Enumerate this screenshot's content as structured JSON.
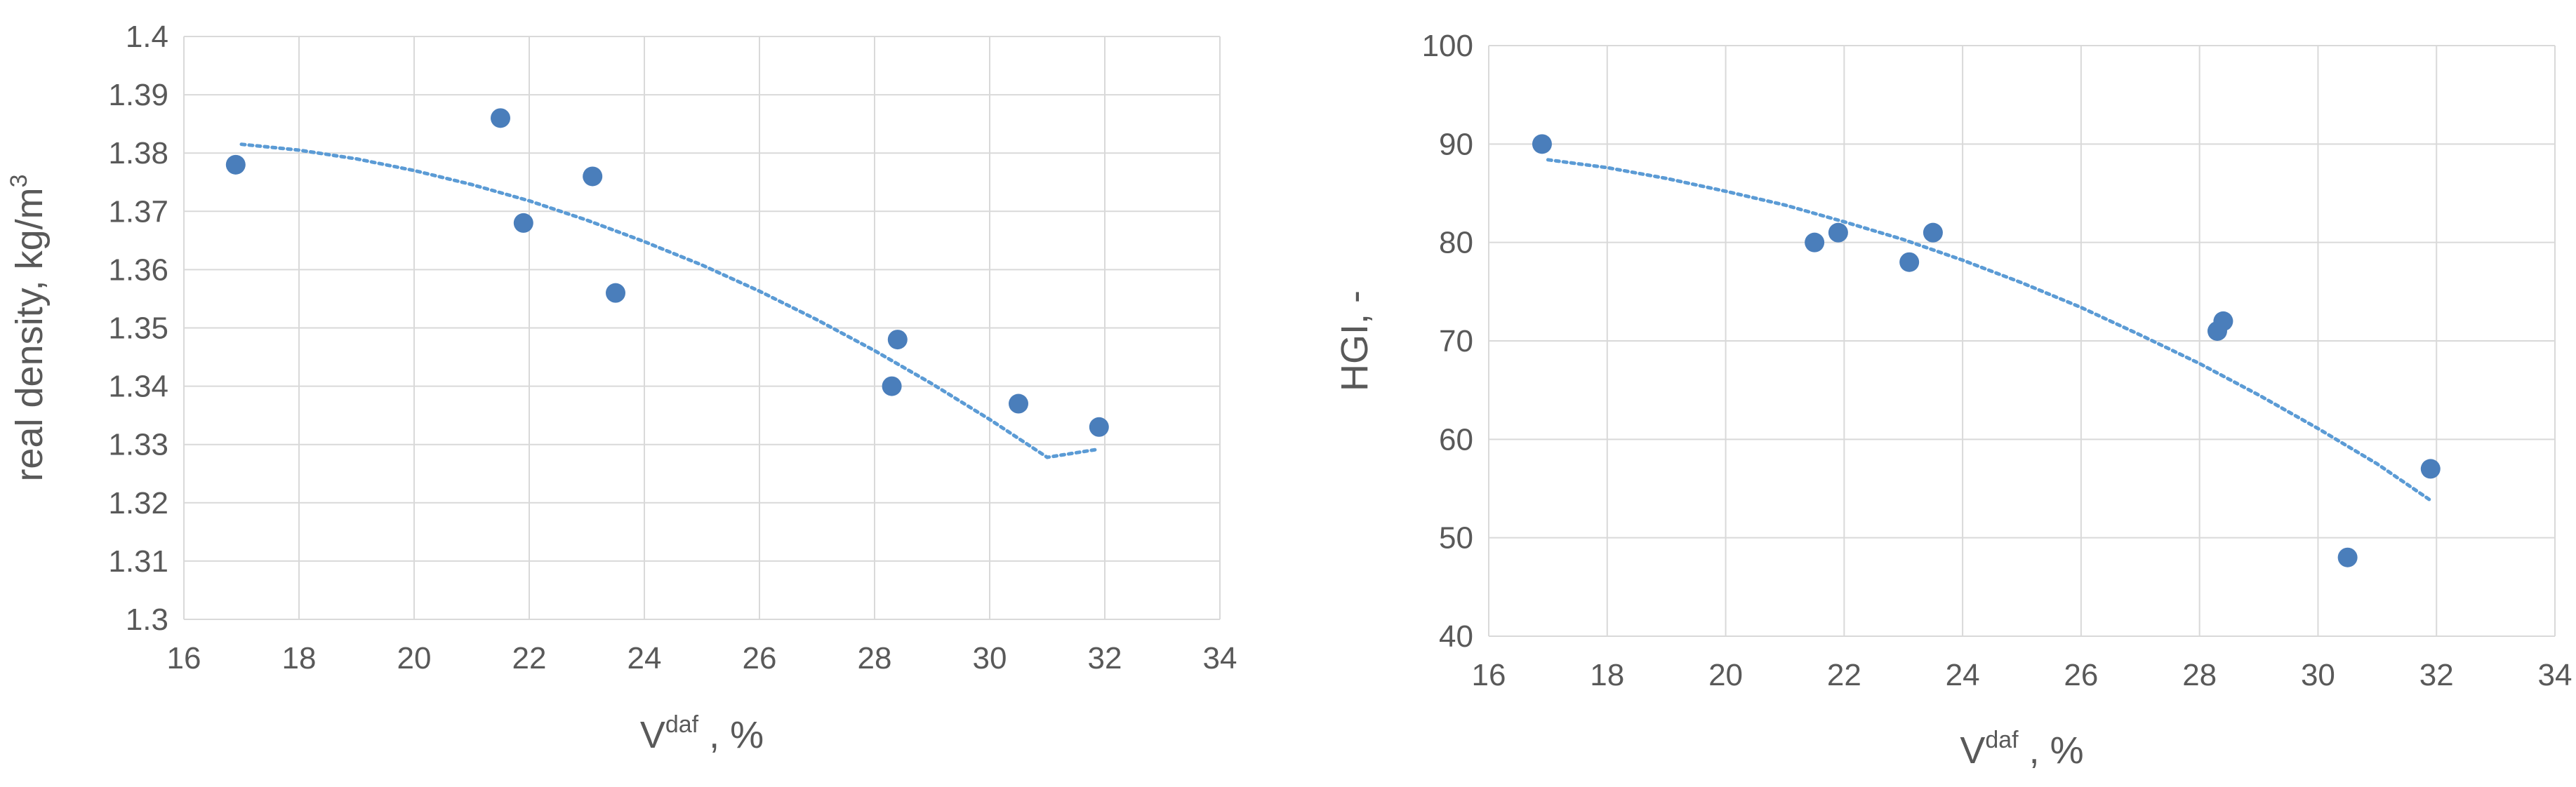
{
  "chart_data": [
    {
      "type": "scatter",
      "xlabel": {
        "main": "V",
        "sup": "daf",
        "rest": " , %"
      },
      "ylabel": {
        "main": "real density, kg/m",
        "sup": "3"
      },
      "xlim": [
        16,
        34
      ],
      "xticks": [
        16,
        18,
        20,
        22,
        24,
        26,
        28,
        30,
        32,
        34
      ],
      "ylim": [
        1.3,
        1.4
      ],
      "yticks": [
        1.3,
        1.31,
        1.32,
        1.33,
        1.34,
        1.35,
        1.36,
        1.37,
        1.38,
        1.39,
        1.4
      ],
      "ytick_labels": [
        "1.3",
        "1.31",
        "1.32",
        "1.33",
        "1.34",
        "1.35",
        "1.36",
        "1.37",
        "1.38",
        "1.39",
        "1.4"
      ],
      "grid": true,
      "marker_color": "#4a7ebb",
      "trendline_color": "#5b9bd5",
      "series": [
        {
          "x": [
            16.9,
            21.5,
            21.9,
            23.1,
            23.5,
            28.3,
            28.4,
            30.5,
            31.9
          ],
          "y": [
            1.378,
            1.386,
            1.368,
            1.376,
            1.356,
            1.34,
            1.348,
            1.337,
            1.333
          ]
        }
      ],
      "trendline": {
        "type": "polynomial",
        "x": [
          17.0,
          18.0,
          19.0,
          20.0,
          21.0,
          22.0,
          23.0,
          24.0,
          25.0,
          26.0,
          27.0,
          28.0,
          29.0,
          30.0,
          31.0,
          31.9
        ],
        "y": [
          1.3815,
          1.3805,
          1.379,
          1.377,
          1.3746,
          1.3718,
          1.3685,
          1.3648,
          1.3608,
          1.3563,
          1.3514,
          1.3461,
          1.3404,
          1.3343,
          1.3278,
          1.3292
        ]
      }
    },
    {
      "type": "scatter",
      "xlabel": {
        "main": "V",
        "sup": "daf",
        "rest": " , %"
      },
      "ylabel": {
        "main": "HGI, -",
        "sup": ""
      },
      "xlim": [
        16,
        34
      ],
      "xticks": [
        16,
        18,
        20,
        22,
        24,
        26,
        28,
        30,
        32,
        34
      ],
      "ylim": [
        40,
        100
      ],
      "yticks": [
        40,
        50,
        60,
        70,
        80,
        90,
        100
      ],
      "ytick_labels": [
        "40",
        "50",
        "60",
        "70",
        "80",
        "90",
        "100"
      ],
      "grid": true,
      "marker_color": "#4a7ebb",
      "trendline_color": "#5b9bd5",
      "series": [
        {
          "x": [
            16.9,
            21.5,
            21.9,
            23.1,
            23.5,
            28.3,
            28.4,
            30.5,
            31.9
          ],
          "y": [
            90,
            80,
            81,
            78,
            81,
            71,
            72,
            48,
            57
          ]
        }
      ],
      "trendline": {
        "type": "polynomial",
        "x": [
          17.0,
          18.0,
          19.0,
          20.0,
          21.0,
          22.0,
          23.0,
          24.0,
          25.0,
          26.0,
          27.0,
          28.0,
          29.0,
          30.0,
          31.0,
          31.9
        ],
        "y": [
          88.4,
          87.6,
          86.5,
          85.2,
          83.8,
          82.1,
          80.3,
          78.2,
          75.9,
          73.4,
          70.6,
          67.7,
          64.5,
          61.1,
          57.5,
          53.8
        ]
      }
    }
  ]
}
